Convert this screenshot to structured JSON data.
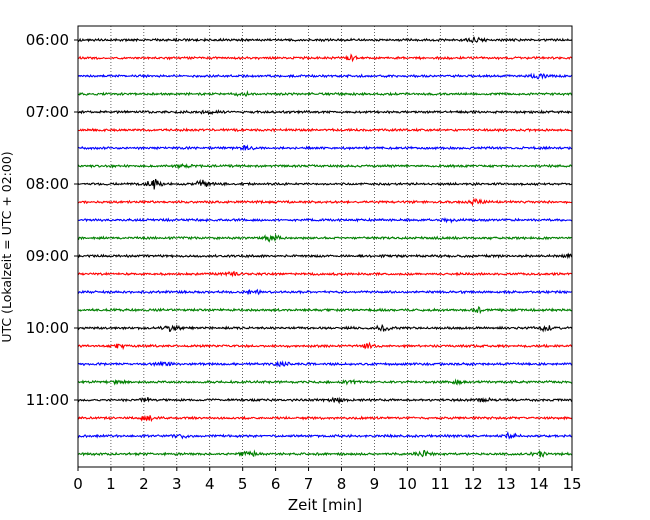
{
  "chart_data": {
    "type": "line",
    "title": "",
    "xlabel": "Zeit  [min]",
    "ylabel": "UTC (Lokalzeit = UTC + 02:00)",
    "xlim": [
      0,
      15
    ],
    "x_ticks": [
      "0",
      "1",
      "2",
      "3",
      "4",
      "5",
      "6",
      "7",
      "8",
      "9",
      "10",
      "11",
      "12",
      "13",
      "14",
      "15"
    ],
    "y_ticks": [
      "06:00",
      "07:00",
      "08:00",
      "09:00",
      "10:00",
      "11:00"
    ],
    "grid": "vertical dotted lines at each minute",
    "colors": [
      "#000000",
      "#ff0000",
      "#0000ff",
      "#008000"
    ],
    "series": [
      {
        "start": "06:00",
        "color": "#000000",
        "bursts": [
          [
            12.1,
            0.6
          ]
        ]
      },
      {
        "start": "06:15",
        "color": "#ff0000",
        "bursts": [
          [
            8.3,
            0.5
          ]
        ]
      },
      {
        "start": "06:30",
        "color": "#0000ff",
        "bursts": [
          [
            14.0,
            0.5
          ]
        ]
      },
      {
        "start": "06:45",
        "color": "#008000",
        "bursts": [
          [
            5.0,
            0.4
          ]
        ]
      },
      {
        "start": "07:00",
        "color": "#000000",
        "bursts": [
          [
            4.0,
            0.4
          ]
        ]
      },
      {
        "start": "07:15",
        "color": "#ff0000",
        "bursts": []
      },
      {
        "start": "07:30",
        "color": "#0000ff",
        "bursts": [
          [
            5.1,
            0.4
          ]
        ]
      },
      {
        "start": "07:45",
        "color": "#008000",
        "bursts": [
          [
            3.2,
            0.4
          ]
        ]
      },
      {
        "start": "08:00",
        "color": "#000000",
        "bursts": [
          [
            2.3,
            1.0
          ],
          [
            3.8,
            0.8
          ]
        ]
      },
      {
        "start": "08:15",
        "color": "#ff0000",
        "bursts": [
          [
            12.1,
            0.5
          ]
        ]
      },
      {
        "start": "08:30",
        "color": "#0000ff",
        "bursts": [
          [
            11.3,
            0.3
          ]
        ]
      },
      {
        "start": "08:45",
        "color": "#008000",
        "bursts": [
          [
            5.9,
            0.7
          ]
        ]
      },
      {
        "start": "09:00",
        "color": "#000000",
        "bursts": [
          [
            15.0,
            0.4
          ]
        ]
      },
      {
        "start": "09:15",
        "color": "#ff0000",
        "bursts": [
          [
            4.6,
            0.4
          ]
        ]
      },
      {
        "start": "09:30",
        "color": "#0000ff",
        "bursts": [
          [
            5.3,
            0.4
          ]
        ]
      },
      {
        "start": "09:45",
        "color": "#008000",
        "bursts": [
          [
            12.1,
            0.6
          ]
        ]
      },
      {
        "start": "10:00",
        "color": "#000000",
        "bursts": [
          [
            2.8,
            0.7
          ],
          [
            9.3,
            0.6
          ],
          [
            14.2,
            0.5
          ]
        ]
      },
      {
        "start": "10:15",
        "color": "#ff0000",
        "bursts": [
          [
            1.2,
            0.5
          ],
          [
            8.8,
            0.4
          ]
        ]
      },
      {
        "start": "10:30",
        "color": "#0000ff",
        "bursts": [
          [
            2.6,
            0.4
          ],
          [
            6.2,
            0.4
          ]
        ]
      },
      {
        "start": "10:45",
        "color": "#008000",
        "bursts": [
          [
            1.2,
            0.4
          ],
          [
            8.3,
            0.4
          ],
          [
            11.5,
            0.4
          ]
        ]
      },
      {
        "start": "11:00",
        "color": "#000000",
        "bursts": [
          [
            2.1,
            0.4
          ],
          [
            7.9,
            0.4
          ],
          [
            12.3,
            0.4
          ]
        ]
      },
      {
        "start": "11:15",
        "color": "#ff0000",
        "bursts": [
          [
            2.1,
            0.5
          ]
        ]
      },
      {
        "start": "11:30",
        "color": "#0000ff",
        "bursts": [
          [
            3.2,
            0.4
          ],
          [
            13.1,
            0.5
          ]
        ]
      },
      {
        "start": "11:45",
        "color": "#008000",
        "bursts": [
          [
            5.2,
            0.6
          ],
          [
            10.5,
            0.6
          ],
          [
            14.0,
            0.5
          ]
        ]
      }
    ]
  }
}
